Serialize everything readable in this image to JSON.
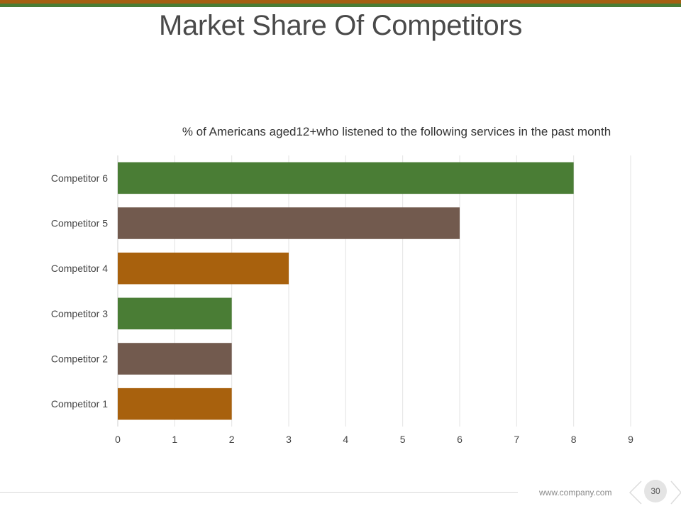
{
  "slide": {
    "title": "Market Share Of Competitors",
    "footer_url": "www.company.com",
    "page_number": "30",
    "colors": {
      "top_stripe_upper": "#a56012",
      "top_stripe_lower": "#4a7d35",
      "green": "#4a7d35",
      "brown": "#725a4e",
      "orange": "#a8610d"
    },
    "icons": [
      "chevron-left-icon",
      "chevron-right-icon"
    ]
  },
  "chart_data": {
    "type": "bar",
    "orientation": "horizontal",
    "title": "% of Americans aged12+who listened to the following services in the past month",
    "categories": [
      "Competitor 6",
      "Competitor 5",
      "Competitor 4",
      "Competitor 3",
      "Competitor 2",
      "Competitor 1"
    ],
    "values": [
      8,
      6,
      3,
      2,
      2,
      2
    ],
    "bar_colors": [
      "#4a7d35",
      "#725a4e",
      "#a8610d",
      "#4a7d35",
      "#725a4e",
      "#a8610d"
    ],
    "xlim": [
      0,
      9
    ],
    "xticks": [
      "0",
      "1",
      "2",
      "3",
      "4",
      "5",
      "6",
      "7",
      "8",
      "9"
    ],
    "grid": "vertical",
    "legend": "none",
    "xlabel": "",
    "ylabel": ""
  }
}
